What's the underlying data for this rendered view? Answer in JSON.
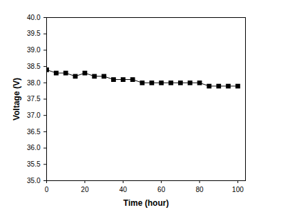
{
  "chart_data": {
    "type": "line",
    "x_label": "Time (hour)",
    "y_label": "Voltage (V)",
    "x": [
      0,
      5,
      10,
      15,
      20,
      25,
      30,
      35,
      40,
      45,
      50,
      55,
      60,
      65,
      70,
      75,
      80,
      85,
      90,
      95,
      100
    ],
    "values": [
      38.4,
      38.3,
      38.3,
      38.2,
      38.3,
      38.2,
      38.2,
      38.1,
      38.1,
      38.1,
      38.0,
      38.0,
      38.0,
      38.0,
      38.0,
      38.0,
      38.0,
      37.9,
      37.9,
      37.9,
      37.9
    ],
    "color": "#000000",
    "marker": "square",
    "line_style": "solid",
    "xlim": [
      0,
      104
    ],
    "xticks": [
      0,
      20,
      40,
      60,
      80,
      100
    ],
    "ylim": [
      35,
      40
    ],
    "yticks": [
      {
        "value": 35,
        "label": "35.0"
      },
      35.5,
      {
        "value": 36,
        "label": "36.0"
      },
      36.5,
      {
        "value": 37,
        "label": "37.0"
      },
      37.5,
      {
        "value": 38,
        "label": "38.0"
      },
      38.5,
      {
        "value": 39,
        "label": "39.0"
      },
      39.5,
      {
        "value": 40,
        "label": "40.0"
      }
    ],
    "grid": false
  }
}
